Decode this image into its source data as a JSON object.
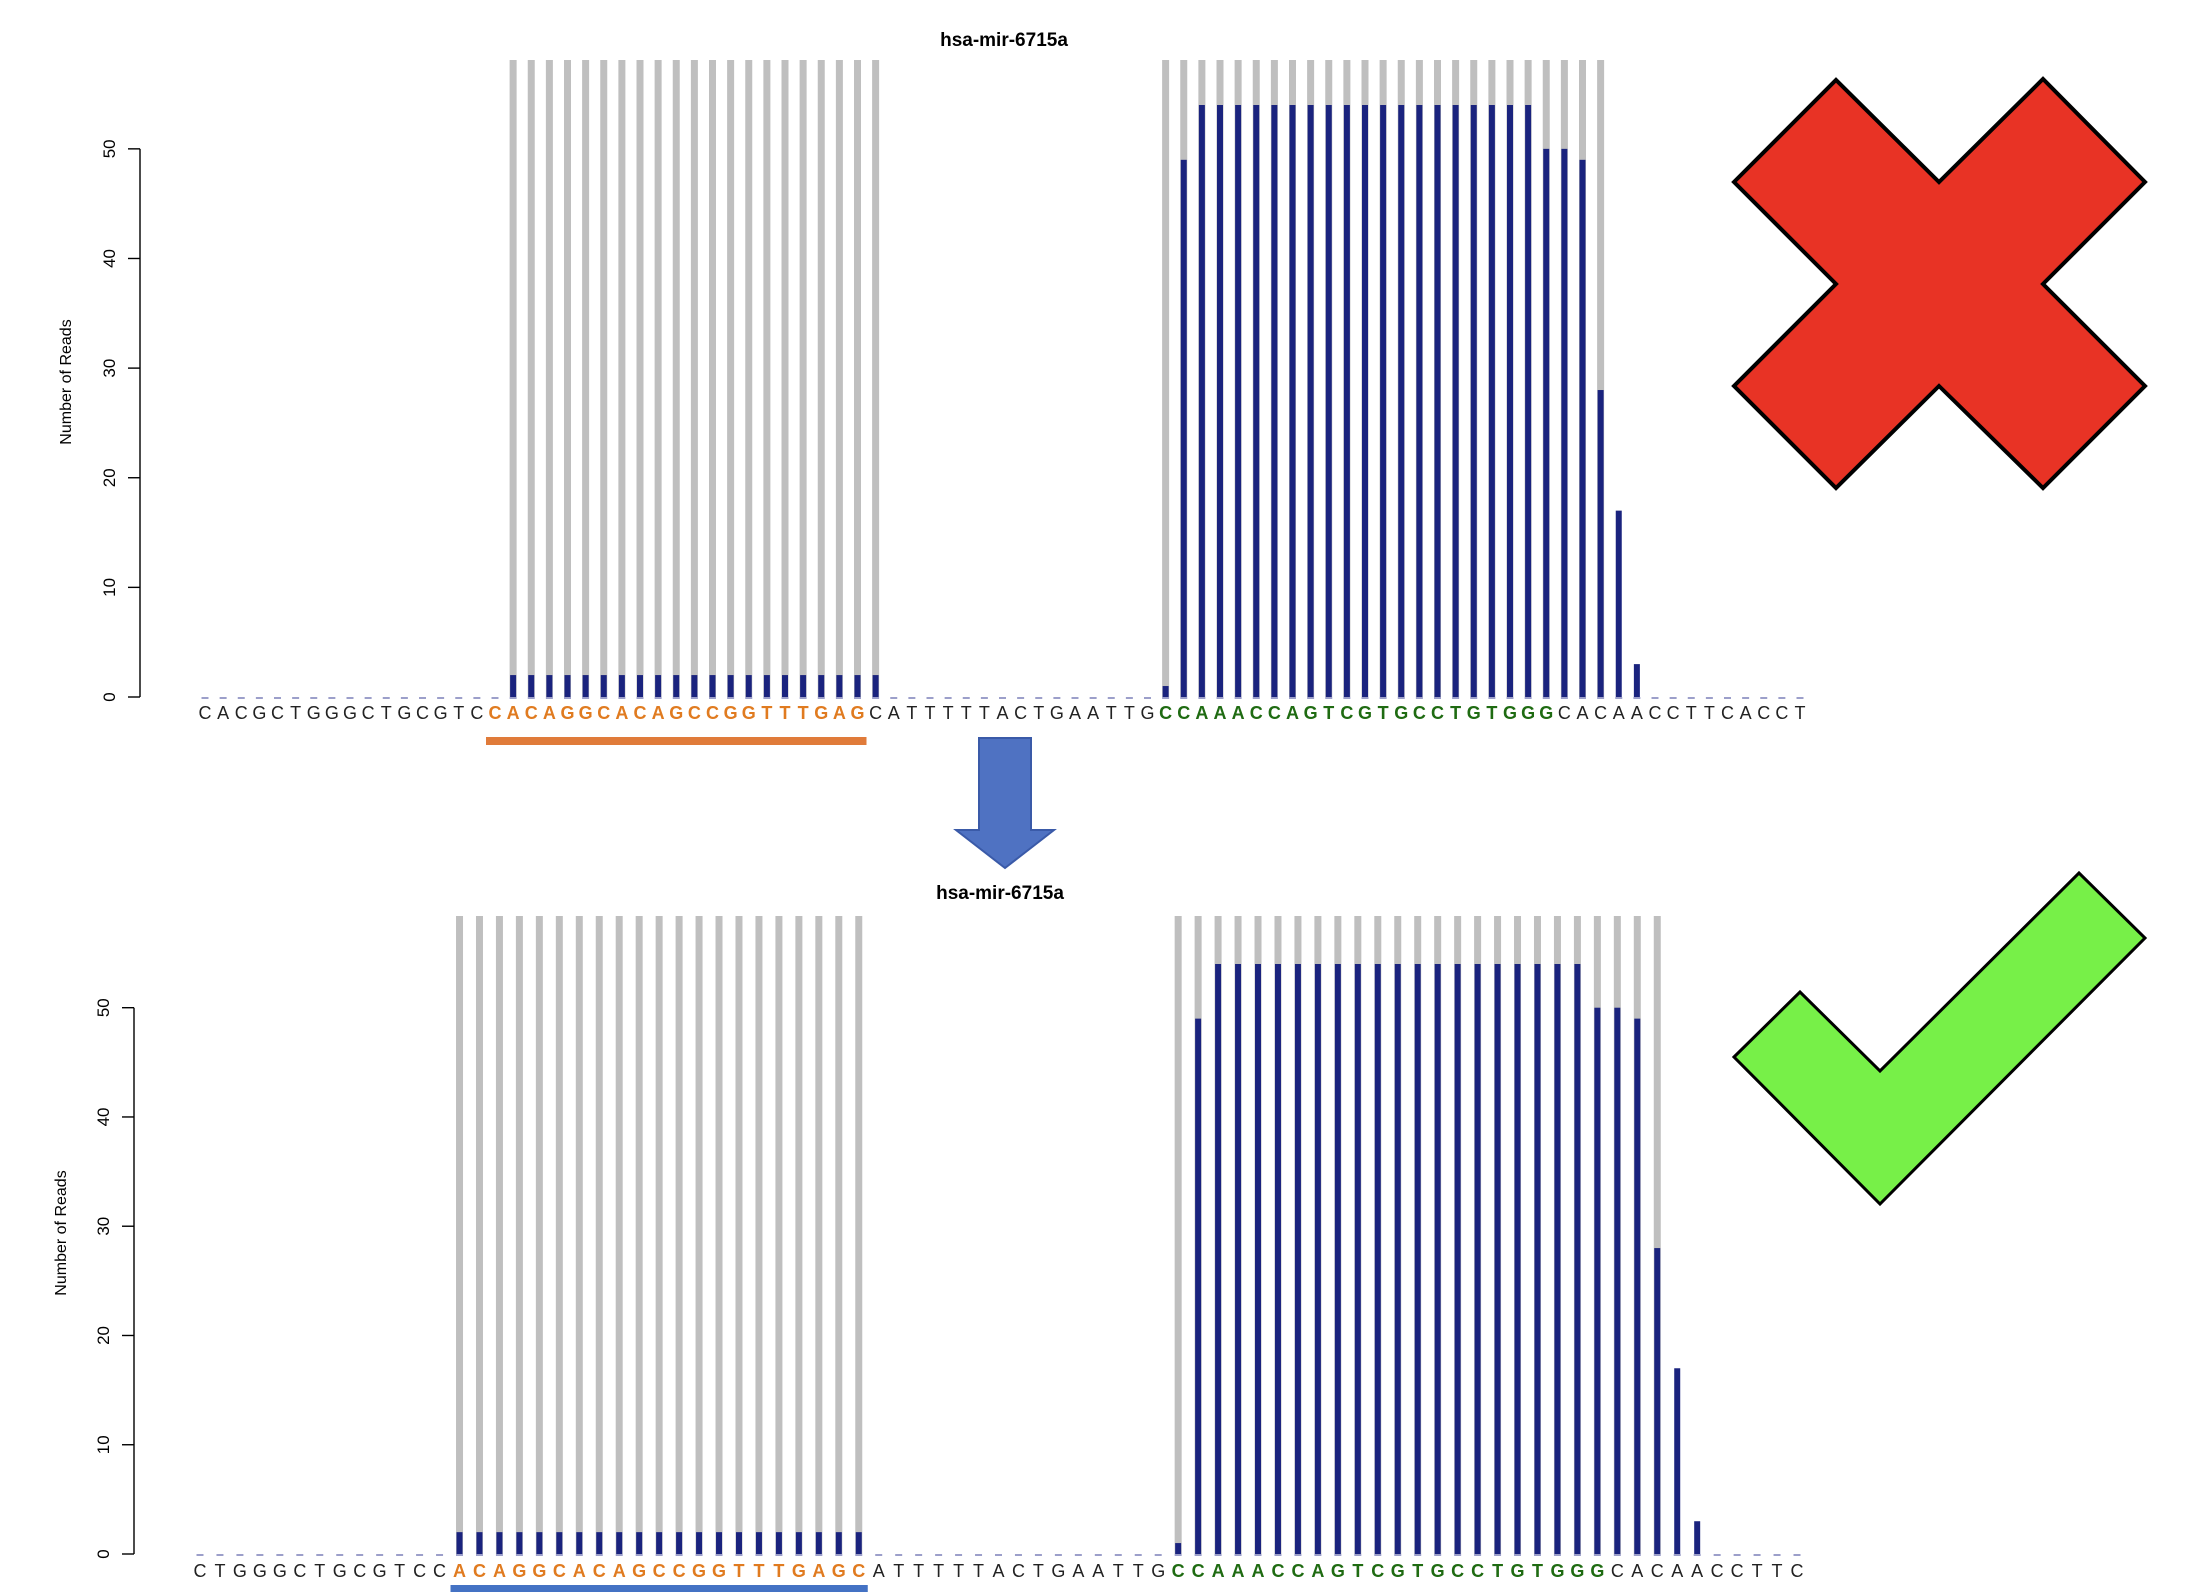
{
  "colors": {
    "coverage_bar": "#1a237e",
    "precursor_bar": "#bfbfbf",
    "mature_5p_highlight": "#e07b20",
    "mature_3p_highlight": "#1f6b12",
    "sequence_text": "#222222",
    "underline_before": "#e07b3a",
    "underline_after": "#4472c4",
    "arrow_fill": "#4f72c2",
    "cross_fill": "#e83325",
    "check_fill": "#77f048"
  },
  "icons": {
    "transition": "arrow-down-icon",
    "before_status": "red-cross-icon",
    "after_status": "green-check-icon"
  },
  "chart_data": [
    {
      "type": "bar",
      "title": "hsa-mir-6715a",
      "xlabel": "",
      "ylabel": "Number of Reads",
      "ylim": [
        0,
        54
      ],
      "yticks": [
        0,
        10,
        20,
        30,
        40,
        50
      ],
      "grid": false,
      "status": "rejected",
      "sequence": "CACGCTGGGCTGCGTCCACAGGCACAGCCGGTTTGAGCATTTTTACTGAATTGCCAAACCAGTCGTGCCTGTGGGCACAACCTTCACCT",
      "mature_5p": {
        "start": 16,
        "end": 36
      },
      "mature_3p": {
        "start": 53,
        "end": 74
      },
      "underline": {
        "start": 16,
        "end": 36
      },
      "precursor_ranges": [
        [
          17,
          37
        ],
        [
          53,
          77
        ]
      ],
      "series": [
        {
          "values": [
            0,
            0,
            0,
            0,
            0,
            0,
            0,
            0,
            0,
            0,
            0,
            0,
            0,
            0,
            0,
            0,
            0,
            2,
            2,
            2,
            2,
            2,
            2,
            2,
            2,
            2,
            2,
            2,
            2,
            2,
            2,
            2,
            2,
            2,
            2,
            2,
            2,
            2,
            0,
            0,
            0,
            0,
            0,
            0,
            0,
            0,
            0,
            0,
            0,
            0,
            0,
            0,
            0,
            1,
            49,
            54,
            54,
            54,
            54,
            54,
            54,
            54,
            54,
            54,
            54,
            54,
            54,
            54,
            54,
            54,
            54,
            54,
            54,
            54,
            50,
            50,
            49,
            28,
            17,
            3,
            0,
            0,
            0,
            0,
            0,
            0,
            0,
            0,
            0,
            0
          ]
        }
      ]
    },
    {
      "type": "bar",
      "title": "hsa-mir-6715a",
      "xlabel": "",
      "ylabel": "Number of Reads",
      "ylim": [
        0,
        54
      ],
      "yticks": [
        0,
        10,
        20,
        30,
        40,
        50
      ],
      "grid": false,
      "status": "accepted",
      "sequence": "CTGGGCTGCGTCCACAGGCACAGCCGGTTTGAGCATTTTTACTGAATTGCCAAACCAGTCGTGCCTGTGGGCACAACCTTC",
      "mature_5p": {
        "start": 13,
        "end": 33
      },
      "mature_3p": {
        "start": 49,
        "end": 70
      },
      "underline": {
        "start": 13,
        "end": 33
      },
      "precursor_ranges": [
        [
          13,
          33
        ],
        [
          49,
          73
        ]
      ],
      "series": [
        {
          "values": [
            0,
            0,
            0,
            0,
            0,
            0,
            0,
            0,
            0,
            0,
            0,
            0,
            0,
            2,
            2,
            2,
            2,
            2,
            2,
            2,
            2,
            2,
            2,
            2,
            2,
            2,
            2,
            2,
            2,
            2,
            2,
            2,
            2,
            2,
            0,
            0,
            0,
            0,
            0,
            0,
            0,
            0,
            0,
            0,
            0,
            0,
            0,
            0,
            0,
            1,
            49,
            54,
            54,
            54,
            54,
            54,
            54,
            54,
            54,
            54,
            54,
            54,
            54,
            54,
            54,
            54,
            54,
            54,
            54,
            54,
            50,
            50,
            49,
            28,
            17,
            3,
            0,
            0,
            0,
            0,
            0,
            0
          ]
        }
      ]
    }
  ]
}
